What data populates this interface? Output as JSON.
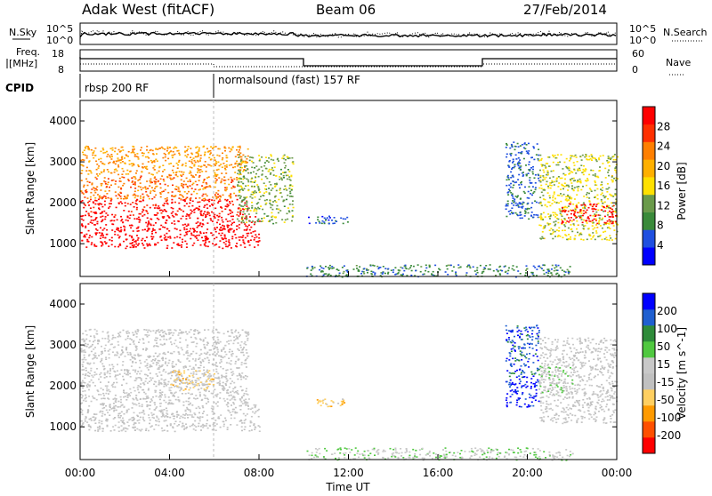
{
  "header": {
    "title": "Adak West (fitACF)",
    "beam": "Beam 06",
    "date": "27/Feb/2014"
  },
  "noise_panel": {
    "left_label": "N.Sky",
    "right_label": "N.Search",
    "left_ticks": [
      "10^5",
      "10^0"
    ],
    "right_ticks": [
      "10^5",
      "10^0"
    ]
  },
  "freq_panel": {
    "left_label_1": "Freq.",
    "left_label_2": "[MHz]",
    "left_ticks": [
      "18",
      "8"
    ],
    "right_label": "Nave",
    "right_ticks": [
      "60",
      "0"
    ]
  },
  "cpid": {
    "label": "CPID",
    "modes": [
      {
        "name": "rbsp 200 RF",
        "start_hour": 0
      },
      {
        "name": "normalsound (fast) 157 RF",
        "start_hour": 6
      }
    ]
  },
  "time_axis": {
    "label": "Time UT",
    "ticks": [
      "00:00",
      "04:00",
      "08:00",
      "12:00",
      "16:00",
      "20:00",
      "00:00"
    ]
  },
  "colors": {
    "power_scale": [
      "#0000ff",
      "#1f4fe0",
      "#3a8a3a",
      "#6a9a4a",
      "#ffe000",
      "#ffb000",
      "#ff7f00",
      "#ff3000",
      "#ff0000"
    ],
    "velocity_scale": [
      "#ff0000",
      "#ff5000",
      "#ff9a00",
      "#ffcf60",
      "#c0c0c0",
      "#c8c8c8",
      "#50c840",
      "#2e8b3a",
      "#1f5fd0",
      "#0000ff"
    ]
  },
  "chart_data": [
    {
      "type": "heatmap",
      "name_panel": "power",
      "xlabel": "",
      "ylabel": "Slant Range [km]",
      "y_ticks": [
        "1000",
        "2000",
        "3000",
        "4000"
      ],
      "xlim": [
        0,
        24
      ],
      "ylim": [
        200,
        4500
      ],
      "colorbar_label": "Power [dB]",
      "colorbar_ticks": [
        "4",
        "8",
        "12",
        "16",
        "20",
        "24",
        "28"
      ],
      "colorbar_range": [
        0,
        30
      ],
      "regions": [
        {
          "x": [
            0.0,
            8.0
          ],
          "y": [
            900,
            1700
          ],
          "value": 30
        },
        {
          "x": [
            0.0,
            7.5
          ],
          "y": [
            1700,
            2100
          ],
          "value": 28
        },
        {
          "x": [
            0.0,
            7.0
          ],
          "y": [
            2100,
            2700
          ],
          "value": 22
        },
        {
          "x": [
            0.0,
            7.5
          ],
          "y": [
            2700,
            3400
          ],
          "value": 20
        },
        {
          "x": [
            7.0,
            9.5
          ],
          "y": [
            1500,
            3200
          ],
          "value": 12
        },
        {
          "x": [
            10.0,
            12.0
          ],
          "y": [
            1500,
            1700
          ],
          "value": 5
        },
        {
          "x": [
            10.0,
            22.0
          ],
          "y": [
            200,
            500
          ],
          "value": 8
        },
        {
          "x": [
            19.0,
            20.5
          ],
          "y": [
            1600,
            3500
          ],
          "value": 6
        },
        {
          "x": [
            20.5,
            24.0
          ],
          "y": [
            1100,
            3200
          ],
          "value": 14
        },
        {
          "x": [
            21.5,
            24.0
          ],
          "y": [
            1500,
            2000
          ],
          "value": 28
        }
      ]
    },
    {
      "type": "heatmap",
      "name_panel": "velocity",
      "xlabel": "Time UT",
      "ylabel": "Slant Range [km]",
      "y_ticks": [
        "1000",
        "2000",
        "3000",
        "4000"
      ],
      "xlim": [
        0,
        24
      ],
      "ylim": [
        200,
        4500
      ],
      "colorbar_label": "Velocity [m s^-1]",
      "colorbar_ticks": [
        "200",
        "100",
        "50",
        "15",
        "-15",
        "-50",
        "-100",
        "-200"
      ],
      "colorbar_range": [
        -250,
        250
      ],
      "regions": [
        {
          "x": [
            0.0,
            8.0
          ],
          "y": [
            900,
            1700
          ],
          "value": 0
        },
        {
          "x": [
            0.0,
            7.5
          ],
          "y": [
            1700,
            2700
          ],
          "value": 0
        },
        {
          "x": [
            0.0,
            7.5
          ],
          "y": [
            2700,
            3400
          ],
          "value": 0
        },
        {
          "x": [
            4.0,
            6.0
          ],
          "y": [
            1900,
            2400
          ],
          "value": -70
        },
        {
          "x": [
            10.5,
            12.0
          ],
          "y": [
            1500,
            1700
          ],
          "value": -70
        },
        {
          "x": [
            10.0,
            22.0
          ],
          "y": [
            200,
            500
          ],
          "value": 40
        },
        {
          "x": [
            19.0,
            20.5
          ],
          "y": [
            1500,
            2200
          ],
          "value": 220
        },
        {
          "x": [
            19.0,
            20.5
          ],
          "y": [
            2200,
            3500
          ],
          "value": 180
        },
        {
          "x": [
            20.5,
            24.0
          ],
          "y": [
            1100,
            3200
          ],
          "value": 0
        },
        {
          "x": [
            20.5,
            22.0
          ],
          "y": [
            1800,
            2500
          ],
          "value": 40
        }
      ]
    }
  ]
}
